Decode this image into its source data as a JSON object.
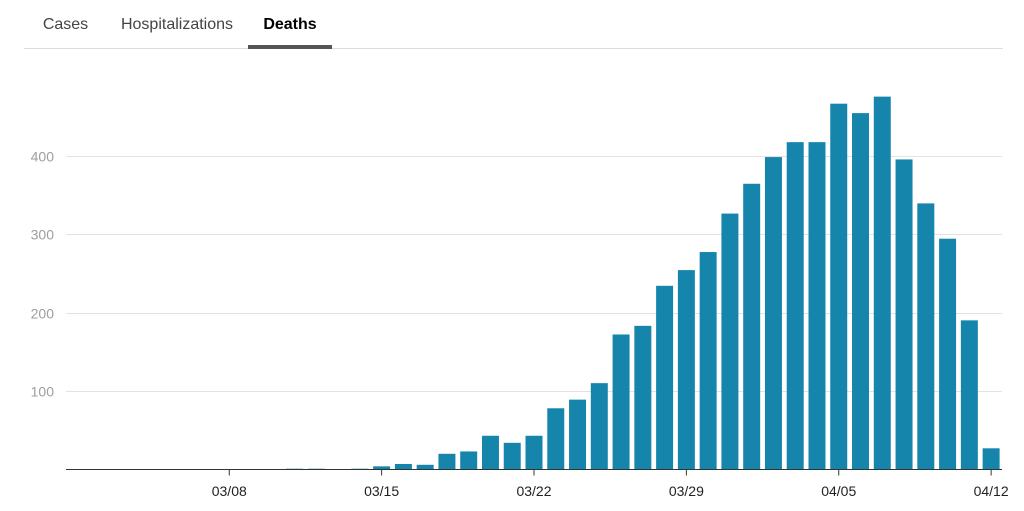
{
  "tabs": [
    {
      "label": "Cases",
      "active": false
    },
    {
      "label": "Hospitalizations",
      "active": false
    },
    {
      "label": "Deaths",
      "active": true
    }
  ],
  "colors": {
    "bar": "#1585ab",
    "active_indicator": "#555555"
  },
  "chart_data": {
    "type": "bar",
    "title": "",
    "xlabel": "",
    "ylabel": "",
    "grid": true,
    "legend": "none",
    "ylim": [
      0,
      500
    ],
    "y_ticks": [
      100,
      200,
      300,
      400
    ],
    "categories": [
      "03/01",
      "03/02",
      "03/03",
      "03/04",
      "03/05",
      "03/06",
      "03/07",
      "03/08",
      "03/09",
      "03/10",
      "03/11",
      "03/12",
      "03/13",
      "03/14",
      "03/15",
      "03/16",
      "03/17",
      "03/18",
      "03/19",
      "03/20",
      "03/21",
      "03/22",
      "03/23",
      "03/24",
      "03/25",
      "03/26",
      "03/27",
      "03/28",
      "03/29",
      "03/30",
      "03/31",
      "04/01",
      "04/02",
      "04/03",
      "04/04",
      "04/05",
      "04/06",
      "04/07",
      "04/08",
      "04/09",
      "04/10",
      "04/11",
      "04/12"
    ],
    "x_tick_labels": [
      "03/08",
      "03/15",
      "03/22",
      "03/29",
      "04/05",
      "04/12"
    ],
    "values": [
      0,
      0,
      0,
      0,
      0,
      0,
      0,
      0,
      0,
      0,
      1,
      1,
      0,
      1,
      4,
      7,
      6,
      20,
      23,
      43,
      34,
      43,
      78,
      89,
      110,
      172,
      183,
      234,
      254,
      277,
      326,
      364,
      398,
      417,
      417,
      466,
      454,
      475,
      395,
      339,
      294,
      190,
      27
    ]
  }
}
